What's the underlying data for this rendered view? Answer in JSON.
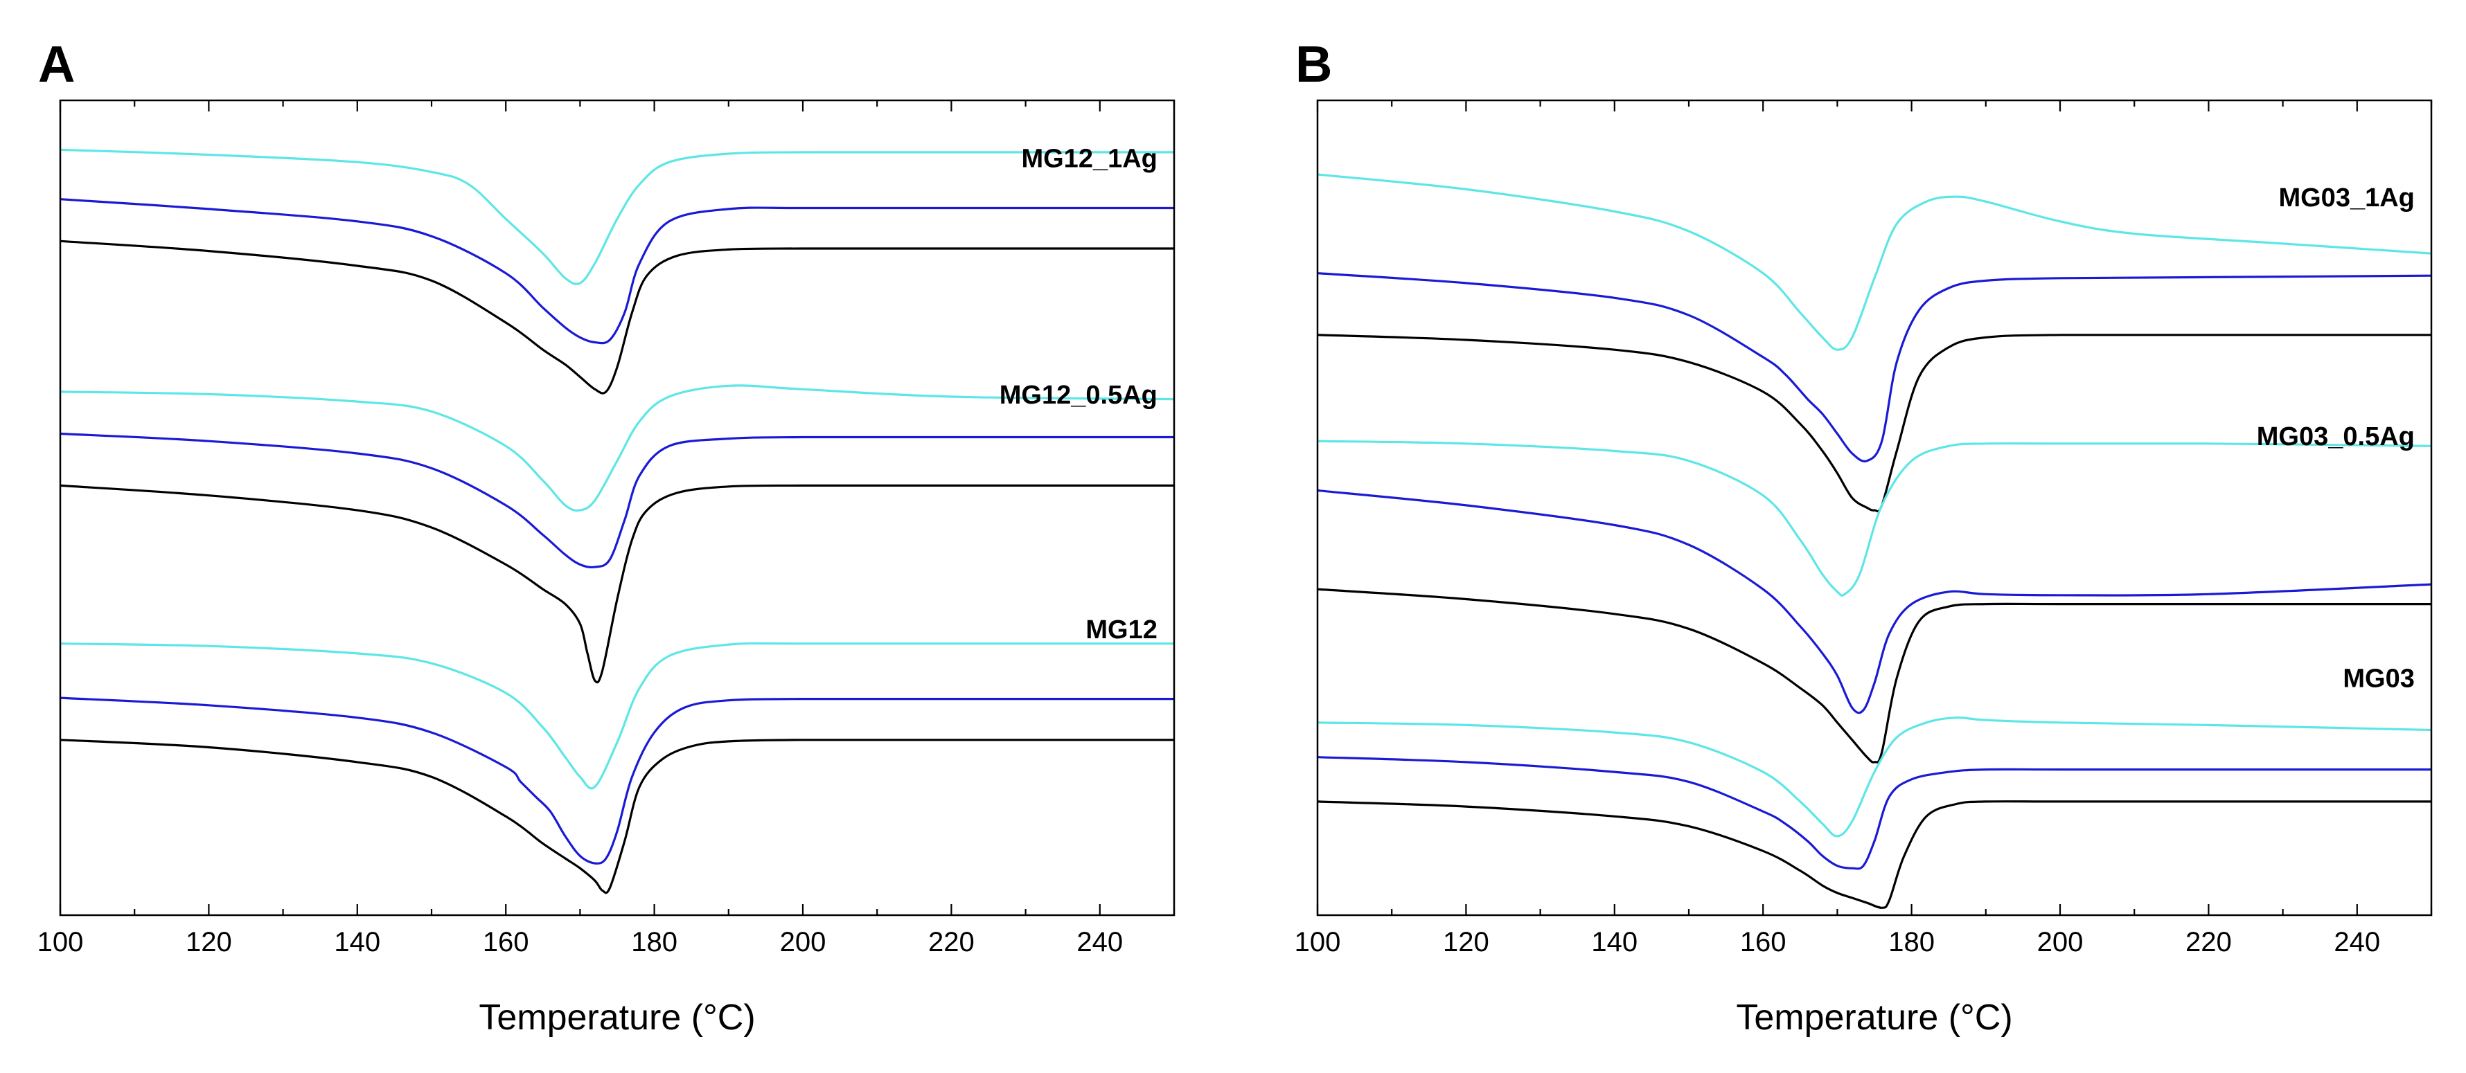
{
  "figure": {
    "panels": [
      "A",
      "B"
    ]
  },
  "chart_data": [
    {
      "type": "line",
      "panel_label": "A",
      "title": "",
      "xlabel": "Temperature (°C)",
      "ylabel": "",
      "xlim": [
        100,
        250
      ],
      "ylim": [
        0,
        16.5
      ],
      "x_ticks": [
        "100",
        "120",
        "140",
        "160",
        "180",
        "200",
        "220",
        "240"
      ],
      "y_ticks_labeled": false,
      "grid": false,
      "series_colors": [
        "#5ee6e6",
        "#1a1ad6",
        "#000000"
      ],
      "groups": [
        {
          "label": "MG12_1Ag",
          "series": [
            {
              "name": "MG12_1Ag cyan",
              "color": "#5ee6e6",
              "x": [
                100,
                120,
                140,
                150,
                155,
                160,
                165,
                168,
                170,
                172,
                175,
                178,
                182,
                190,
                200,
                220,
                250
              ],
              "y": [
                15.5,
                15.4,
                15.25,
                15.05,
                14.8,
                14.1,
                13.4,
                12.9,
                12.8,
                13.2,
                14.1,
                14.8,
                15.25,
                15.42,
                15.45,
                15.45,
                15.45
              ]
            },
            {
              "name": "MG12_1Ag blue",
              "color": "#1a1ad6",
              "x": [
                100,
                120,
                140,
                150,
                160,
                165,
                168,
                170,
                172,
                174,
                176,
                178,
                182,
                190,
                200,
                220,
                250
              ],
              "y": [
                14.5,
                14.3,
                14.05,
                13.75,
                13.0,
                12.3,
                11.9,
                11.7,
                11.6,
                11.65,
                12.2,
                13.2,
                14.05,
                14.3,
                14.32,
                14.32,
                14.32
              ]
            },
            {
              "name": "MG12_1Ag black",
              "color": "#000000",
              "x": [
                100,
                120,
                140,
                150,
                160,
                165,
                168,
                170,
                172,
                173.5,
                175,
                177,
                179,
                183,
                190,
                200,
                220,
                250
              ],
              "y": [
                13.65,
                13.45,
                13.15,
                12.85,
                12.0,
                11.45,
                11.15,
                10.9,
                10.65,
                10.6,
                11.1,
                12.2,
                12.95,
                13.35,
                13.48,
                13.5,
                13.5,
                13.5
              ]
            }
          ]
        },
        {
          "label": "MG12_0.5Ag",
          "series": [
            {
              "name": "MG12_0.5Ag cyan",
              "color": "#5ee6e6",
              "x": [
                100,
                120,
                140,
                150,
                160,
                165,
                168,
                170,
                172,
                175,
                178,
                182,
                190,
                200,
                220,
                250
              ],
              "y": [
                10.6,
                10.55,
                10.4,
                10.2,
                9.5,
                8.8,
                8.3,
                8.2,
                8.4,
                9.2,
                10.0,
                10.5,
                10.72,
                10.65,
                10.5,
                10.45
              ]
            },
            {
              "name": "MG12_0.5Ag blue",
              "color": "#1a1ad6",
              "x": [
                100,
                120,
                140,
                150,
                160,
                165,
                168,
                170,
                172,
                174,
                176,
                178,
                182,
                190,
                200,
                220,
                250
              ],
              "y": [
                9.75,
                9.6,
                9.35,
                9.05,
                8.3,
                7.7,
                7.3,
                7.1,
                7.05,
                7.2,
                8.0,
                8.9,
                9.5,
                9.65,
                9.68,
                9.68,
                9.68
              ]
            },
            {
              "name": "MG12_0.5Ag black",
              "color": "#000000",
              "x": [
                100,
                120,
                140,
                150,
                160,
                165,
                168,
                170,
                171,
                172,
                173,
                175,
                177,
                179,
                183,
                190,
                200,
                220,
                250
              ],
              "y": [
                8.7,
                8.5,
                8.2,
                7.85,
                7.1,
                6.6,
                6.3,
                5.9,
                5.3,
                4.75,
                4.95,
                6.4,
                7.6,
                8.2,
                8.55,
                8.68,
                8.7,
                8.7,
                8.7
              ]
            }
          ]
        },
        {
          "label": "MG12",
          "series": [
            {
              "name": "MG12 cyan",
              "color": "#5ee6e6",
              "x": [
                100,
                120,
                140,
                150,
                160,
                165,
                168,
                170,
                172,
                175,
                178,
                182,
                190,
                200,
                220,
                250
              ],
              "y": [
                5.5,
                5.45,
                5.3,
                5.1,
                4.5,
                3.8,
                3.2,
                2.8,
                2.6,
                3.5,
                4.6,
                5.25,
                5.48,
                5.5,
                5.5,
                5.5
              ]
            },
            {
              "name": "MG12 blue",
              "color": "#1a1ad6",
              "x": [
                100,
                120,
                140,
                150,
                160,
                162,
                164,
                166,
                168,
                170,
                172,
                173.5,
                175,
                177,
                180,
                184,
                190,
                200,
                220,
                250
              ],
              "y": [
                4.4,
                4.25,
                4.0,
                3.7,
                3.0,
                2.7,
                2.4,
                2.1,
                1.6,
                1.2,
                1.05,
                1.15,
                1.7,
                2.8,
                3.7,
                4.2,
                4.35,
                4.38,
                4.38,
                4.38
              ]
            },
            {
              "name": "MG12 black",
              "color": "#000000",
              "x": [
                100,
                120,
                140,
                150,
                160,
                165,
                168,
                170,
                172,
                173,
                174,
                176,
                178,
                181,
                185,
                190,
                200,
                220,
                250
              ],
              "y": [
                3.55,
                3.4,
                3.1,
                2.8,
                2.0,
                1.45,
                1.15,
                0.95,
                0.7,
                0.5,
                0.55,
                1.5,
                2.6,
                3.15,
                3.42,
                3.52,
                3.55,
                3.55,
                3.55
              ]
            }
          ]
        }
      ]
    },
    {
      "type": "line",
      "panel_label": "B",
      "title": "",
      "xlabel": "Temperature (°C)",
      "ylabel": "",
      "xlim": [
        100,
        250
      ],
      "ylim": [
        0,
        16.5
      ],
      "x_ticks": [
        "100",
        "120",
        "140",
        "160",
        "180",
        "200",
        "220",
        "240"
      ],
      "y_ticks_labeled": false,
      "grid": false,
      "series_colors": [
        "#5ee6e6",
        "#1a1ad6",
        "#000000"
      ],
      "groups": [
        {
          "label": "MG03_1Ag",
          "series": [
            {
              "name": "MG03_1Ag cyan",
              "color": "#5ee6e6",
              "x": [
                100,
                120,
                140,
                150,
                160,
                165,
                168,
                170,
                172,
                175,
                178,
                182,
                186,
                190,
                200,
                210,
                230,
                250
              ],
              "y": [
                15.0,
                14.7,
                14.25,
                13.85,
                13.0,
                12.2,
                11.7,
                11.45,
                11.7,
                12.9,
                14.0,
                14.45,
                14.55,
                14.45,
                14.05,
                13.8,
                13.6,
                13.4
              ]
            },
            {
              "name": "MG03_1Ag blue",
              "color": "#1a1ad6",
              "x": [
                100,
                120,
                140,
                150,
                160,
                163,
                166,
                168,
                170,
                172,
                174,
                176,
                178,
                181,
                185,
                190,
                200,
                220,
                250
              ],
              "y": [
                13.0,
                12.8,
                12.5,
                12.15,
                11.3,
                10.95,
                10.45,
                10.15,
                9.75,
                9.35,
                9.2,
                9.6,
                11.2,
                12.25,
                12.7,
                12.85,
                12.9,
                12.92,
                12.95
              ]
            },
            {
              "name": "MG03_1Ag black",
              "color": "#000000",
              "x": [
                100,
                120,
                140,
                150,
                160,
                165,
                168,
                170,
                172,
                174,
                175,
                176,
                178,
                181,
                185,
                190,
                200,
                220,
                250
              ],
              "y": [
                11.75,
                11.65,
                11.45,
                11.2,
                10.6,
                9.95,
                9.4,
                8.95,
                8.45,
                8.25,
                8.2,
                8.3,
                9.4,
                10.9,
                11.5,
                11.7,
                11.75,
                11.75,
                11.75
              ]
            }
          ]
        },
        {
          "label": "MG03_0.5Ag",
          "series": [
            {
              "name": "MG03_0.5Ag cyan",
              "color": "#5ee6e6",
              "x": [
                100,
                120,
                140,
                150,
                160,
                165,
                168,
                170,
                171,
                173,
                176,
                180,
                185,
                190,
                200,
                220,
                250
              ],
              "y": [
                9.6,
                9.55,
                9.4,
                9.2,
                8.5,
                7.6,
                6.9,
                6.55,
                6.5,
                6.9,
                8.3,
                9.2,
                9.5,
                9.55,
                9.55,
                9.55,
                9.5
              ]
            },
            {
              "name": "MG03_0.5Ag blue",
              "color": "#1a1ad6",
              "x": [
                100,
                120,
                140,
                150,
                160,
                165,
                168,
                170,
                172,
                173.5,
                175,
                177,
                180,
                185,
                190,
                200,
                220,
                250
              ],
              "y": [
                8.6,
                8.3,
                7.9,
                7.5,
                6.6,
                5.85,
                5.3,
                4.85,
                4.2,
                4.15,
                4.7,
                5.7,
                6.3,
                6.55,
                6.5,
                6.48,
                6.5,
                6.7
              ]
            },
            {
              "name": "MG03_0.5Ag black",
              "color": "#000000",
              "x": [
                100,
                120,
                140,
                150,
                160,
                165,
                168,
                170,
                172,
                174,
                175,
                176,
                178,
                181,
                185,
                190,
                200,
                220,
                250
              ],
              "y": [
                6.6,
                6.4,
                6.1,
                5.8,
                5.1,
                4.6,
                4.25,
                3.9,
                3.55,
                3.2,
                3.1,
                3.3,
                4.8,
                5.95,
                6.25,
                6.3,
                6.3,
                6.3,
                6.3
              ]
            }
          ]
        },
        {
          "label": "MG03",
          "series": [
            {
              "name": "MG03 cyan",
              "color": "#5ee6e6",
              "x": [
                100,
                120,
                140,
                150,
                160,
                165,
                168,
                170,
                172,
                175,
                178,
                182,
                186,
                190,
                200,
                220,
                250
              ],
              "y": [
                3.9,
                3.85,
                3.7,
                3.5,
                2.9,
                2.3,
                1.85,
                1.6,
                1.9,
                2.9,
                3.6,
                3.9,
                4.0,
                3.95,
                3.9,
                3.85,
                3.75
              ]
            },
            {
              "name": "MG03 blue",
              "color": "#1a1ad6",
              "x": [
                100,
                120,
                140,
                150,
                160,
                163,
                166,
                168,
                170,
                172,
                173.5,
                175,
                177,
                180,
                185,
                190,
                200,
                220,
                250
              ],
              "y": [
                3.2,
                3.1,
                2.9,
                2.7,
                2.1,
                1.85,
                1.5,
                1.2,
                1.0,
                0.95,
                1.0,
                1.5,
                2.4,
                2.75,
                2.9,
                2.95,
                2.95,
                2.95,
                2.95
              ]
            },
            {
              "name": "MG03 black",
              "color": "#000000",
              "x": [
                100,
                120,
                140,
                150,
                160,
                165,
                168,
                170,
                172,
                174,
                176,
                177,
                179,
                182,
                186,
                190,
                200,
                220,
                250
              ],
              "y": [
                2.3,
                2.2,
                2.0,
                1.8,
                1.3,
                0.9,
                0.6,
                0.45,
                0.35,
                0.25,
                0.15,
                0.3,
                1.2,
                2.0,
                2.25,
                2.3,
                2.3,
                2.3,
                2.3
              ]
            }
          ]
        }
      ]
    }
  ]
}
